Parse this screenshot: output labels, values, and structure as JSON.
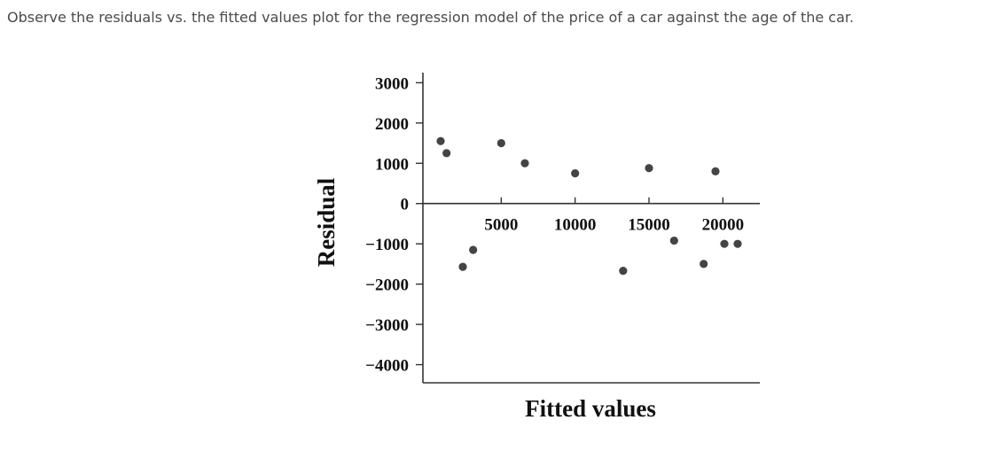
{
  "question": {
    "text": "Observe the residuals vs. the fitted values plot for the regression model of the price of a car against the age of the car."
  },
  "colors": {
    "axis": "#333333",
    "point": "#444444"
  },
  "chart_data": {
    "type": "scatter",
    "xlabel": "Fitted values",
    "ylabel": "Residual",
    "xlim": [
      -300,
      22500
    ],
    "ylim": [
      -4450,
      3250
    ],
    "xticks": [
      5000,
      10000,
      15000,
      20000
    ],
    "xtick_labels": [
      "5000",
      "10000",
      "15000",
      "20000"
    ],
    "yticks": [
      3000,
      2000,
      1000,
      0,
      -1000,
      -2000,
      -3000,
      -4000
    ],
    "ytick_labels": [
      "3000",
      "2000",
      "1000",
      "0",
      "−1000",
      "−2000",
      "−3000",
      "−4000"
    ],
    "grid": false,
    "zero_line": true,
    "points": [
      {
        "x": 900,
        "y": 1550
      },
      {
        "x": 1300,
        "y": 1250
      },
      {
        "x": 2400,
        "y": -1570
      },
      {
        "x": 3100,
        "y": -1150
      },
      {
        "x": 5000,
        "y": 1500
      },
      {
        "x": 6600,
        "y": 1000
      },
      {
        "x": 10000,
        "y": 750
      },
      {
        "x": 13250,
        "y": -1670
      },
      {
        "x": 15000,
        "y": 880
      },
      {
        "x": 16700,
        "y": -920
      },
      {
        "x": 18700,
        "y": -1500
      },
      {
        "x": 19500,
        "y": 800
      },
      {
        "x": 20100,
        "y": -1000
      },
      {
        "x": 21000,
        "y": -1000
      }
    ]
  }
}
